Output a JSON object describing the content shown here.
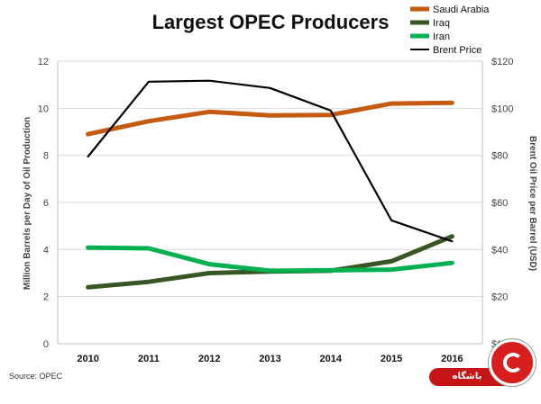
{
  "chart_data": {
    "type": "line",
    "title": "Largest OPEC Producers",
    "categories": [
      "2010",
      "2011",
      "2012",
      "2013",
      "2014",
      "2015",
      "2016"
    ],
    "ylabel": "Million Barrels per Day of Oil Production",
    "y2label": "Brent Oil Price per Barrel (USD)",
    "ylim": [
      0,
      12
    ],
    "yticks": [
      "0",
      "2",
      "4",
      "6",
      "8",
      "10",
      "12"
    ],
    "y2lim": [
      0,
      120
    ],
    "y2ticks": [
      "$0",
      "$20",
      "$40",
      "$60",
      "$80",
      "$100",
      "$120"
    ],
    "grid": true,
    "legend_position": "top-right",
    "series": [
      {
        "name": "Saudi Arabia",
        "axis": "left",
        "color": "#c55a11",
        "values": [
          8.9,
          9.45,
          9.85,
          9.7,
          9.72,
          10.2,
          10.23
        ]
      },
      {
        "name": "Iraq",
        "axis": "left",
        "color": "#375623",
        "values": [
          2.4,
          2.63,
          3.0,
          3.07,
          3.1,
          3.5,
          4.56
        ]
      },
      {
        "name": "Iran",
        "axis": "left",
        "color": "#00b050",
        "values": [
          4.08,
          4.05,
          3.38,
          3.1,
          3.12,
          3.15,
          3.43
        ]
      },
      {
        "name": "Brent Price",
        "axis": "right",
        "color": "#000000",
        "values": [
          79.5,
          111.3,
          111.7,
          108.6,
          99.0,
          52.4,
          43.5
        ]
      }
    ],
    "source": "Source: OPEC"
  },
  "badge": {
    "text": "باشگاه خبرنگاران"
  }
}
